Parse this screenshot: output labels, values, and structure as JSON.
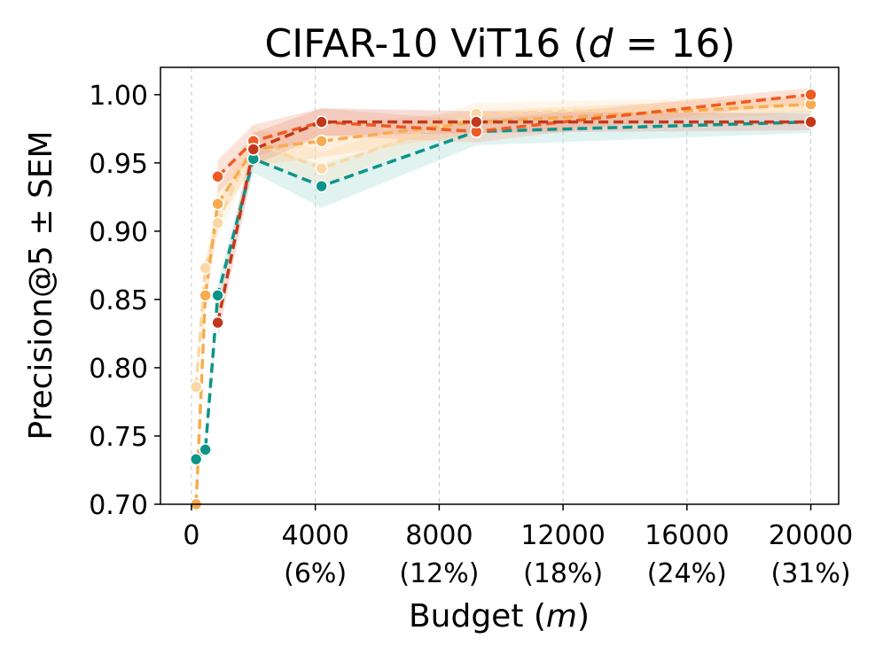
{
  "chart_data": {
    "type": "line",
    "title": "CIFAR-10 ViT16 (",
    "title_var": "d",
    "title_rest": " = 16)",
    "xlabel": "Budget (",
    "xlabel_var": "m",
    "xlabel_rest": ")",
    "ylabel": "Precision@5 ± SEM",
    "xlim": [
      -1000,
      20900
    ],
    "ylim": [
      0.7,
      1.02
    ],
    "x_ticks": [
      {
        "value": 0,
        "label": "0",
        "sub": ""
      },
      {
        "value": 4000,
        "label": "4000",
        "sub": "(6%)"
      },
      {
        "value": 8000,
        "label": "8000",
        "sub": "(12%)"
      },
      {
        "value": 12000,
        "label": "12000",
        "sub": "(18%)"
      },
      {
        "value": 16000,
        "label": "16000",
        "sub": "(24%)"
      },
      {
        "value": 20000,
        "label": "20000",
        "sub": "(31%)"
      }
    ],
    "y_ticks": [
      {
        "value": 0.7,
        "label": "0.70"
      },
      {
        "value": 0.75,
        "label": "0.75"
      },
      {
        "value": 0.8,
        "label": "0.80"
      },
      {
        "value": 0.85,
        "label": "0.85"
      },
      {
        "value": 0.9,
        "label": "0.90"
      },
      {
        "value": 0.95,
        "label": "0.95"
      },
      {
        "value": 1.0,
        "label": "1.00"
      }
    ],
    "grid": "x-dashed",
    "series": [
      {
        "name": "teal",
        "color": "#0d9488",
        "band_color": "#a7dcd6",
        "x": [
          150,
          450,
          850,
          2000,
          4200,
          9200,
          20000
        ],
        "values": [
          0.733,
          0.74,
          0.853,
          0.953,
          0.933,
          0.973,
          0.98
        ],
        "sem": [
          0.004,
          0.004,
          0.008,
          0.01,
          0.016,
          0.01,
          0.008
        ]
      },
      {
        "name": "light-peach",
        "color": "#fbd7a4",
        "band_color": "#fde4c4",
        "x": [
          150,
          450,
          850,
          2000,
          4200,
          9200,
          20000
        ],
        "values": [
          0.786,
          0.873,
          0.906,
          0.965,
          0.946,
          0.986,
          0.993
        ],
        "sem": [
          0.01,
          0.01,
          0.01,
          0.012,
          0.012,
          0.008,
          0.006
        ]
      },
      {
        "name": "light-orange",
        "color": "#f7ac4f",
        "band_color": "#fbcf9a",
        "x": [
          150,
          450,
          850,
          2000,
          4200,
          9200,
          20000
        ],
        "values": [
          0.7,
          0.853,
          0.92,
          0.96,
          0.966,
          0.98,
          0.993
        ],
        "sem": [
          0.01,
          0.012,
          0.012,
          0.012,
          0.012,
          0.008,
          0.006
        ]
      },
      {
        "name": "orange-red",
        "color": "#ef5a22",
        "band_color": "#f7b094",
        "x": [
          850,
          2000,
          4200,
          9200,
          20000
        ],
        "values": [
          0.94,
          0.966,
          0.98,
          0.973,
          1.0
        ],
        "sem": [
          0.012,
          0.012,
          0.01,
          0.008,
          0.005
        ]
      },
      {
        "name": "dark-red",
        "color": "#c2381a",
        "band_color": "#e6a08c",
        "x": [
          850,
          2000,
          4200,
          9200,
          20000
        ],
        "values": [
          0.833,
          0.96,
          0.98,
          0.98,
          0.98
        ],
        "sem": [
          0.012,
          0.012,
          0.01,
          0.008,
          0.006
        ]
      }
    ]
  }
}
